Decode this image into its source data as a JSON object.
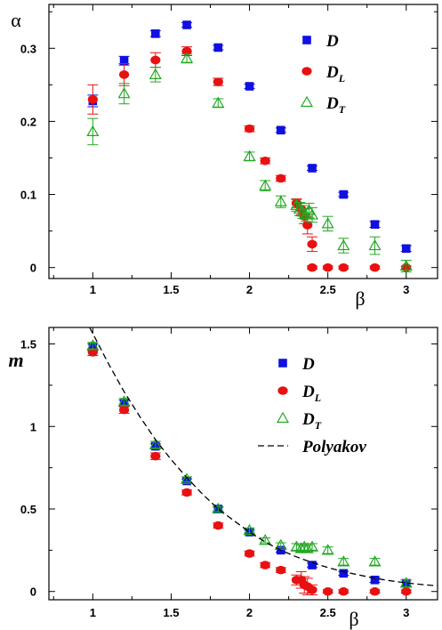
{
  "chart_data": [
    {
      "type": "scatter",
      "panel": "top",
      "xlabel": "β",
      "ylabel": "α",
      "xlim": [
        0.72,
        3.2
      ],
      "ylim": [
        -0.015,
        0.36
      ],
      "x_ticks": [
        1,
        1.5,
        2,
        2.5,
        3
      ],
      "x_tick_labels": [
        "1",
        "1.5",
        "2",
        "2.5",
        "3"
      ],
      "y_ticks": [
        0,
        0.1,
        0.2,
        0.3
      ],
      "y_tick_labels": [
        "0",
        "0.1",
        "0.2",
        "0.3"
      ],
      "grid": false,
      "legend_position": "top-right",
      "series": [
        {
          "name": "D",
          "label_main": "D",
          "label_sub": "",
          "marker": "square",
          "color": "#1010e0",
          "points": [
            {
              "x": 1.0,
              "y": 0.228,
              "err": 0.008
            },
            {
              "x": 1.2,
              "y": 0.283,
              "err": 0.006
            },
            {
              "x": 1.4,
              "y": 0.32,
              "err": 0.004
            },
            {
              "x": 1.6,
              "y": 0.332,
              "err": 0.003
            },
            {
              "x": 1.8,
              "y": 0.301,
              "err": 0.003
            },
            {
              "x": 2.0,
              "y": 0.248,
              "err": 0.003
            },
            {
              "x": 2.2,
              "y": 0.188,
              "err": 0.003
            },
            {
              "x": 2.4,
              "y": 0.136,
              "err": 0.003
            },
            {
              "x": 2.6,
              "y": 0.1,
              "err": 0.003
            },
            {
              "x": 2.8,
              "y": 0.059,
              "err": 0.004
            },
            {
              "x": 3.0,
              "y": 0.026,
              "err": 0.004
            }
          ]
        },
        {
          "name": "D_L",
          "label_main": "D",
          "label_sub": "L",
          "marker": "circle",
          "color": "#e81010",
          "points": [
            {
              "x": 1.0,
              "y": 0.23,
              "err": 0.02
            },
            {
              "x": 1.2,
              "y": 0.264,
              "err": 0.015
            },
            {
              "x": 1.4,
              "y": 0.284,
              "err": 0.01
            },
            {
              "x": 1.6,
              "y": 0.296,
              "err": 0.006
            },
            {
              "x": 1.8,
              "y": 0.254,
              "err": 0.005
            },
            {
              "x": 2.0,
              "y": 0.19,
              "err": 0.004
            },
            {
              "x": 2.1,
              "y": 0.146,
              "err": 0.004
            },
            {
              "x": 2.2,
              "y": 0.122,
              "err": 0.004
            },
            {
              "x": 2.3,
              "y": 0.088,
              "err": 0.006
            },
            {
              "x": 2.33,
              "y": 0.08,
              "err": 0.008
            },
            {
              "x": 2.35,
              "y": 0.07,
              "err": 0.01
            },
            {
              "x": 2.37,
              "y": 0.058,
              "err": 0.012
            },
            {
              "x": 2.4,
              "y": 0.032,
              "err": 0.01
            },
            {
              "x": 2.4,
              "y": 0.0,
              "err": 0.002
            },
            {
              "x": 2.5,
              "y": 0.0,
              "err": 0.002
            },
            {
              "x": 2.6,
              "y": 0.0,
              "err": 0.002
            },
            {
              "x": 2.8,
              "y": 0.0,
              "err": 0.002
            },
            {
              "x": 3.0,
              "y": 0.0,
              "err": 0.002
            }
          ]
        },
        {
          "name": "D_T",
          "label_main": "D",
          "label_sub": "T",
          "marker": "triangle",
          "color": "#20a820",
          "points": [
            {
              "x": 1.0,
              "y": 0.186,
              "err": 0.018
            },
            {
              "x": 1.2,
              "y": 0.238,
              "err": 0.014
            },
            {
              "x": 1.4,
              "y": 0.264,
              "err": 0.01
            },
            {
              "x": 1.6,
              "y": 0.286,
              "err": 0.006
            },
            {
              "x": 1.8,
              "y": 0.225,
              "err": 0.006
            },
            {
              "x": 2.0,
              "y": 0.152,
              "err": 0.006
            },
            {
              "x": 2.1,
              "y": 0.112,
              "err": 0.007
            },
            {
              "x": 2.2,
              "y": 0.09,
              "err": 0.008
            },
            {
              "x": 2.3,
              "y": 0.085,
              "err": 0.008
            },
            {
              "x": 2.32,
              "y": 0.08,
              "err": 0.009
            },
            {
              "x": 2.34,
              "y": 0.076,
              "err": 0.009
            },
            {
              "x": 2.36,
              "y": 0.072,
              "err": 0.009
            },
            {
              "x": 2.38,
              "y": 0.078,
              "err": 0.01
            },
            {
              "x": 2.4,
              "y": 0.072,
              "err": 0.01
            },
            {
              "x": 2.5,
              "y": 0.06,
              "err": 0.01
            },
            {
              "x": 2.6,
              "y": 0.03,
              "err": 0.01
            },
            {
              "x": 2.8,
              "y": 0.03,
              "err": 0.012
            },
            {
              "x": 3.0,
              "y": 0.002,
              "err": 0.008
            }
          ]
        }
      ]
    },
    {
      "type": "scatter",
      "panel": "bottom",
      "xlabel": "β",
      "ylabel": "m",
      "xlim": [
        0.72,
        3.2
      ],
      "ylim": [
        -0.05,
        1.6
      ],
      "x_ticks": [
        1,
        1.5,
        2,
        2.5,
        3
      ],
      "x_tick_labels": [
        "1",
        "1.5",
        "2",
        "2.5",
        "3"
      ],
      "y_ticks": [
        0,
        0.5,
        1,
        1.5
      ],
      "y_tick_labels": [
        "0",
        "0.5",
        "1",
        "1.5"
      ],
      "grid": false,
      "legend_position": "top-right",
      "series": [
        {
          "name": "D",
          "label_main": "D",
          "label_sub": "",
          "marker": "square",
          "color": "#1010e0",
          "points": [
            {
              "x": 1.0,
              "y": 1.48,
              "err": 0.02
            },
            {
              "x": 1.2,
              "y": 1.14,
              "err": 0.02
            },
            {
              "x": 1.4,
              "y": 0.88,
              "err": 0.015
            },
            {
              "x": 1.6,
              "y": 0.67,
              "err": 0.012
            },
            {
              "x": 1.8,
              "y": 0.5,
              "err": 0.012
            },
            {
              "x": 2.0,
              "y": 0.36,
              "err": 0.012
            },
            {
              "x": 2.2,
              "y": 0.25,
              "err": 0.012
            },
            {
              "x": 2.4,
              "y": 0.16,
              "err": 0.012
            },
            {
              "x": 2.6,
              "y": 0.11,
              "err": 0.012
            },
            {
              "x": 2.8,
              "y": 0.07,
              "err": 0.015
            },
            {
              "x": 3.0,
              "y": 0.05,
              "err": 0.02
            }
          ]
        },
        {
          "name": "D_L",
          "label_main": "D",
          "label_sub": "L",
          "marker": "circle",
          "color": "#e81010",
          "points": [
            {
              "x": 1.0,
              "y": 1.45,
              "err": 0.02
            },
            {
              "x": 1.2,
              "y": 1.1,
              "err": 0.02
            },
            {
              "x": 1.4,
              "y": 0.82,
              "err": 0.02
            },
            {
              "x": 1.6,
              "y": 0.6,
              "err": 0.015
            },
            {
              "x": 1.8,
              "y": 0.4,
              "err": 0.015
            },
            {
              "x": 2.0,
              "y": 0.23,
              "err": 0.015
            },
            {
              "x": 2.1,
              "y": 0.16,
              "err": 0.015
            },
            {
              "x": 2.2,
              "y": 0.13,
              "err": 0.015
            },
            {
              "x": 2.3,
              "y": 0.07,
              "err": 0.03
            },
            {
              "x": 2.33,
              "y": 0.07,
              "err": 0.05
            },
            {
              "x": 2.35,
              "y": 0.04,
              "err": 0.05
            },
            {
              "x": 2.37,
              "y": 0.03,
              "err": 0.05
            },
            {
              "x": 2.4,
              "y": 0.01,
              "err": 0.03
            },
            {
              "x": 2.5,
              "y": 0.0,
              "err": 0.01
            },
            {
              "x": 2.6,
              "y": 0.0,
              "err": 0.01
            },
            {
              "x": 2.8,
              "y": 0.0,
              "err": 0.01
            },
            {
              "x": 3.0,
              "y": 0.0,
              "err": 0.01
            }
          ]
        },
        {
          "name": "D_T",
          "label_main": "D",
          "label_sub": "T",
          "marker": "triangle",
          "color": "#20a820",
          "points": [
            {
              "x": 1.0,
              "y": 1.49,
              "err": 0.02
            },
            {
              "x": 1.2,
              "y": 1.15,
              "err": 0.02
            },
            {
              "x": 1.4,
              "y": 0.89,
              "err": 0.02
            },
            {
              "x": 1.6,
              "y": 0.68,
              "err": 0.015
            },
            {
              "x": 1.8,
              "y": 0.5,
              "err": 0.015
            },
            {
              "x": 2.0,
              "y": 0.37,
              "err": 0.015
            },
            {
              "x": 2.1,
              "y": 0.31,
              "err": 0.015
            },
            {
              "x": 2.2,
              "y": 0.28,
              "err": 0.015
            },
            {
              "x": 2.3,
              "y": 0.27,
              "err": 0.02
            },
            {
              "x": 2.33,
              "y": 0.26,
              "err": 0.02
            },
            {
              "x": 2.35,
              "y": 0.27,
              "err": 0.02
            },
            {
              "x": 2.37,
              "y": 0.26,
              "err": 0.02
            },
            {
              "x": 2.4,
              "y": 0.27,
              "err": 0.02
            },
            {
              "x": 2.5,
              "y": 0.25,
              "err": 0.02
            },
            {
              "x": 2.6,
              "y": 0.18,
              "err": 0.02
            },
            {
              "x": 2.8,
              "y": 0.18,
              "err": 0.02
            },
            {
              "x": 3.0,
              "y": 0.05,
              "err": 0.02
            }
          ]
        },
        {
          "name": "Polyakov",
          "label_main": "Polyakov",
          "label_sub": "",
          "marker": "dashed-line",
          "color": "#000000",
          "points": [
            {
              "x": 0.98,
              "y": 1.6
            },
            {
              "x": 1.1,
              "y": 1.38
            },
            {
              "x": 1.2,
              "y": 1.21
            },
            {
              "x": 1.3,
              "y": 1.06
            },
            {
              "x": 1.4,
              "y": 0.92
            },
            {
              "x": 1.5,
              "y": 0.8
            },
            {
              "x": 1.6,
              "y": 0.69
            },
            {
              "x": 1.7,
              "y": 0.59
            },
            {
              "x": 1.8,
              "y": 0.5
            },
            {
              "x": 1.9,
              "y": 0.43
            },
            {
              "x": 2.0,
              "y": 0.36
            },
            {
              "x": 2.1,
              "y": 0.3
            },
            {
              "x": 2.2,
              "y": 0.25
            },
            {
              "x": 2.3,
              "y": 0.21
            },
            {
              "x": 2.4,
              "y": 0.175
            },
            {
              "x": 2.5,
              "y": 0.145
            },
            {
              "x": 2.6,
              "y": 0.12
            },
            {
              "x": 2.7,
              "y": 0.1
            },
            {
              "x": 2.8,
              "y": 0.08
            },
            {
              "x": 2.9,
              "y": 0.065
            },
            {
              "x": 3.0,
              "y": 0.052
            },
            {
              "x": 3.1,
              "y": 0.042
            },
            {
              "x": 3.2,
              "y": 0.034
            }
          ]
        }
      ]
    }
  ]
}
